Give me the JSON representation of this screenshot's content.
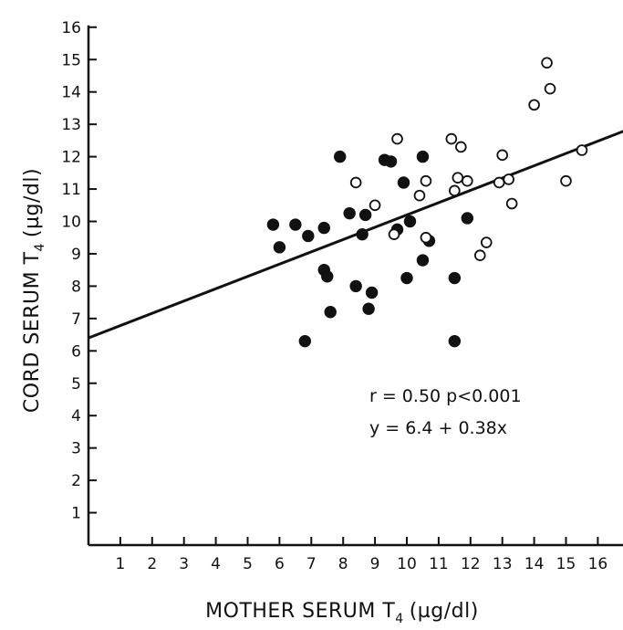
{
  "chart_data": {
    "type": "scatter",
    "xlabel": "MOTHER SERUM T",
    "xlabel_subscript": "4",
    "xlabel_unit": "(µg/dl)",
    "ylabel": "CORD SERUM T",
    "ylabel_subscript": "4",
    "ylabel_unit": "(µg/dl)",
    "xlim": [
      0,
      16
    ],
    "ylim": [
      0,
      16
    ],
    "xticks": [
      1,
      2,
      3,
      4,
      5,
      6,
      7,
      8,
      9,
      10,
      11,
      12,
      13,
      14,
      15,
      16
    ],
    "yticks": [
      1,
      2,
      3,
      4,
      5,
      6,
      7,
      8,
      9,
      10,
      11,
      12,
      13,
      14,
      15,
      16
    ],
    "grid": false,
    "annotations": [
      "r = 0.50  p<0.001",
      "y = 6.4 + 0.38x"
    ],
    "regression": {
      "intercept": 6.4,
      "slope": 0.38,
      "x_range": [
        0,
        16.9
      ]
    },
    "series": [
      {
        "marker": "filled-circle",
        "color": "#111111",
        "points": [
          [
            5.8,
            9.9
          ],
          [
            6.0,
            9.2
          ],
          [
            6.5,
            9.9
          ],
          [
            6.9,
            9.55
          ],
          [
            6.8,
            6.3
          ],
          [
            7.4,
            9.8
          ],
          [
            7.4,
            8.5
          ],
          [
            7.5,
            8.3
          ],
          [
            7.6,
            7.2
          ],
          [
            7.9,
            12.0
          ],
          [
            8.2,
            10.25
          ],
          [
            8.4,
            8.0
          ],
          [
            8.6,
            9.6
          ],
          [
            8.7,
            10.2
          ],
          [
            8.8,
            7.3
          ],
          [
            8.9,
            7.8
          ],
          [
            9.3,
            11.9
          ],
          [
            9.5,
            11.85
          ],
          [
            9.7,
            9.75
          ],
          [
            9.9,
            11.2
          ],
          [
            10.0,
            8.25
          ],
          [
            10.1,
            10.0
          ],
          [
            10.5,
            12.0
          ],
          [
            10.5,
            8.8
          ],
          [
            10.7,
            9.4
          ],
          [
            11.5,
            8.25
          ],
          [
            11.5,
            6.3
          ],
          [
            11.9,
            10.1
          ]
        ]
      },
      {
        "marker": "open-circle",
        "color": "#111111",
        "points": [
          [
            8.4,
            11.2
          ],
          [
            9.0,
            10.5
          ],
          [
            9.6,
            9.6
          ],
          [
            9.7,
            12.55
          ],
          [
            10.4,
            10.8
          ],
          [
            10.6,
            11.25
          ],
          [
            10.6,
            9.5
          ],
          [
            11.4,
            12.55
          ],
          [
            11.5,
            10.95
          ],
          [
            11.6,
            11.35
          ],
          [
            11.7,
            12.3
          ],
          [
            11.9,
            11.25
          ],
          [
            12.3,
            8.95
          ],
          [
            12.5,
            9.35
          ],
          [
            12.9,
            11.2
          ],
          [
            13.0,
            12.05
          ],
          [
            13.2,
            11.3
          ],
          [
            13.3,
            10.55
          ],
          [
            14.0,
            13.6
          ],
          [
            14.4,
            14.9
          ],
          [
            14.5,
            14.1
          ],
          [
            15.0,
            11.25
          ],
          [
            15.5,
            12.2
          ]
        ]
      }
    ]
  }
}
